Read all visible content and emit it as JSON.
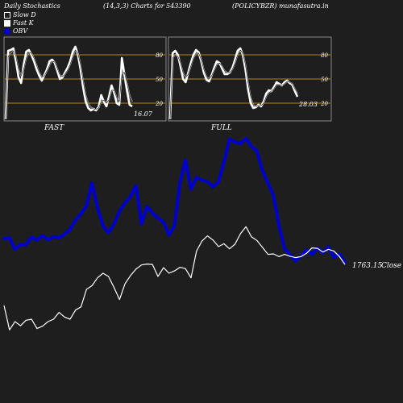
{
  "header": {
    "title": "Daily Stochastics",
    "params": "(14,3,3) Charts for 543390",
    "symbol_site": "(POLICYBZR) munafasutra.in"
  },
  "legend": [
    {
      "label": "Slow  D",
      "color": "#ffffff"
    },
    {
      "label": "Fast  K",
      "color": "#ffffff"
    },
    {
      "label": "OBV",
      "color": "#0000cc"
    }
  ],
  "colors": {
    "background": "#1e1e1e",
    "panel_border": "#888888",
    "level_line": "#b8860b",
    "price": "#ffffff",
    "obv": "#0000cc"
  },
  "chart_data": [
    {
      "type": "line",
      "title": "FAST",
      "ylim": [
        0,
        100
      ],
      "levels": [
        20,
        50,
        80
      ],
      "level_labels": [
        "20",
        "50",
        "80"
      ],
      "last_value_label": "16.07",
      "series": [
        {
          "name": "Fast  K",
          "values": [
            0,
            85,
            86,
            88,
            72,
            52,
            45,
            68,
            84,
            86,
            80,
            72,
            62,
            54,
            48,
            55,
            62,
            72,
            74,
            70,
            60,
            50,
            52,
            58,
            64,
            72,
            84,
            90,
            80,
            62,
            40,
            22,
            14,
            11,
            13,
            11,
            15,
            30,
            22,
            16,
            28,
            42,
            33,
            20,
            18,
            76,
            55,
            35,
            18,
            16
          ]
        },
        {
          "name": "Slow  D",
          "values": [
            0,
            78,
            82,
            85,
            78,
            62,
            54,
            62,
            76,
            83,
            82,
            76,
            67,
            58,
            52,
            54,
            60,
            67,
            72,
            71,
            63,
            55,
            53,
            56,
            61,
            68,
            78,
            86,
            82,
            68,
            48,
            30,
            20,
            15,
            13,
            12,
            14,
            22,
            24,
            20,
            24,
            36,
            36,
            27,
            22,
            56,
            58,
            45,
            30,
            22
          ]
        }
      ]
    },
    {
      "type": "line",
      "title": "FULL",
      "ylim": [
        0,
        100
      ],
      "levels": [
        20,
        50,
        80
      ],
      "level_labels": [
        "20",
        "50",
        "80"
      ],
      "last_value_label": "28.03",
      "series": [
        {
          "name": "Fast  K",
          "values": [
            0,
            82,
            85,
            80,
            66,
            50,
            46,
            58,
            70,
            80,
            86,
            83,
            72,
            58,
            49,
            47,
            55,
            64,
            72,
            70,
            63,
            56,
            56,
            58,
            64,
            74,
            85,
            88,
            80,
            62,
            38,
            20,
            14,
            15,
            18,
            16,
            22,
            32,
            36,
            35,
            40,
            46,
            44,
            42,
            46,
            48,
            45,
            43,
            35,
            28
          ]
        },
        {
          "name": "Slow  D",
          "values": [
            0,
            76,
            80,
            78,
            70,
            58,
            52,
            56,
            66,
            76,
            82,
            82,
            74,
            62,
            53,
            50,
            54,
            61,
            68,
            70,
            66,
            60,
            58,
            58,
            62,
            70,
            80,
            86,
            82,
            68,
            46,
            28,
            18,
            16,
            17,
            17,
            20,
            28,
            33,
            35,
            38,
            43,
            43,
            42,
            44,
            47,
            46,
            44,
            38,
            32
          ]
        }
      ]
    },
    {
      "type": "line",
      "title": "",
      "price_label": "1763.15",
      "price_label_suffix": "Close",
      "series": [
        {
          "name": "Close",
          "values": [
            1675,
            1622,
            1640,
            1631,
            1643,
            1645,
            1625,
            1630,
            1640,
            1645,
            1660,
            1650,
            1645,
            1665,
            1672,
            1710,
            1718,
            1735,
            1745,
            1738,
            1714,
            1688,
            1722,
            1740,
            1754,
            1763,
            1765,
            1764,
            1738,
            1757,
            1745,
            1750,
            1758,
            1755,
            1735,
            1793,
            1815,
            1826,
            1817,
            1803,
            1809,
            1798,
            1808,
            1831,
            1846,
            1824,
            1816,
            1801,
            1786,
            1787,
            1781,
            1786,
            1782,
            1779,
            1781,
            1788,
            1800,
            1799,
            1791,
            1797,
            1793,
            1781,
            1764
          ]
        },
        {
          "name": "OBV",
          "values": [
            1800,
            1802,
            1771,
            1784,
            1783,
            1804,
            1796,
            1808,
            1797,
            1805,
            1802,
            1812,
            1825,
            1850,
            1868,
            1890,
            1952,
            1884,
            1835,
            1816,
            1840,
            1875,
            1897,
            1915,
            1945,
            1840,
            1888,
            1870,
            1856,
            1845,
            1810,
            1835,
            1953,
            2015,
            1935,
            1967,
            1960,
            1956,
            1942,
            1955,
            2010,
            2072,
            2064,
            2060,
            2074,
            2052,
            2040,
            1985,
            1952,
            1918,
            1836,
            1772,
            1757,
            1739,
            1752,
            1769,
            1757,
            1774,
            1761,
            1777,
            1749,
            1758,
            1734
          ]
        }
      ]
    }
  ]
}
